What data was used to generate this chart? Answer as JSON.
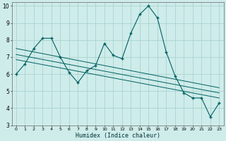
{
  "xlabel": "Humidex (Indice chaleur)",
  "bg_color": "#ceecea",
  "grid_color": "#aad4d0",
  "line_color": "#006060",
  "xlim": [
    -0.5,
    23.5
  ],
  "ylim": [
    3,
    10.2
  ],
  "xticks": [
    0,
    1,
    2,
    3,
    4,
    5,
    6,
    7,
    8,
    9,
    10,
    11,
    12,
    13,
    14,
    15,
    16,
    17,
    18,
    19,
    20,
    21,
    22,
    23
  ],
  "yticks": [
    3,
    4,
    5,
    6,
    7,
    8,
    9,
    10
  ],
  "main_x": [
    0,
    1,
    2,
    3,
    4,
    5,
    6,
    7,
    8,
    9,
    10,
    11,
    12,
    13,
    14,
    15,
    16,
    17,
    18,
    19,
    20,
    21,
    22,
    23
  ],
  "main_y": [
    6.0,
    6.6,
    7.5,
    8.1,
    8.1,
    7.0,
    6.1,
    5.5,
    6.2,
    6.5,
    7.8,
    7.1,
    6.9,
    8.4,
    9.5,
    10.0,
    9.3,
    7.3,
    5.9,
    4.9,
    4.6,
    4.6,
    3.5,
    4.3
  ],
  "line1_x": [
    0,
    23
  ],
  "line1_y": [
    7.5,
    5.2
  ],
  "line2_x": [
    0,
    23
  ],
  "line2_y": [
    7.15,
    4.9
  ],
  "line3_x": [
    0,
    23
  ],
  "line3_y": [
    6.85,
    4.6
  ]
}
